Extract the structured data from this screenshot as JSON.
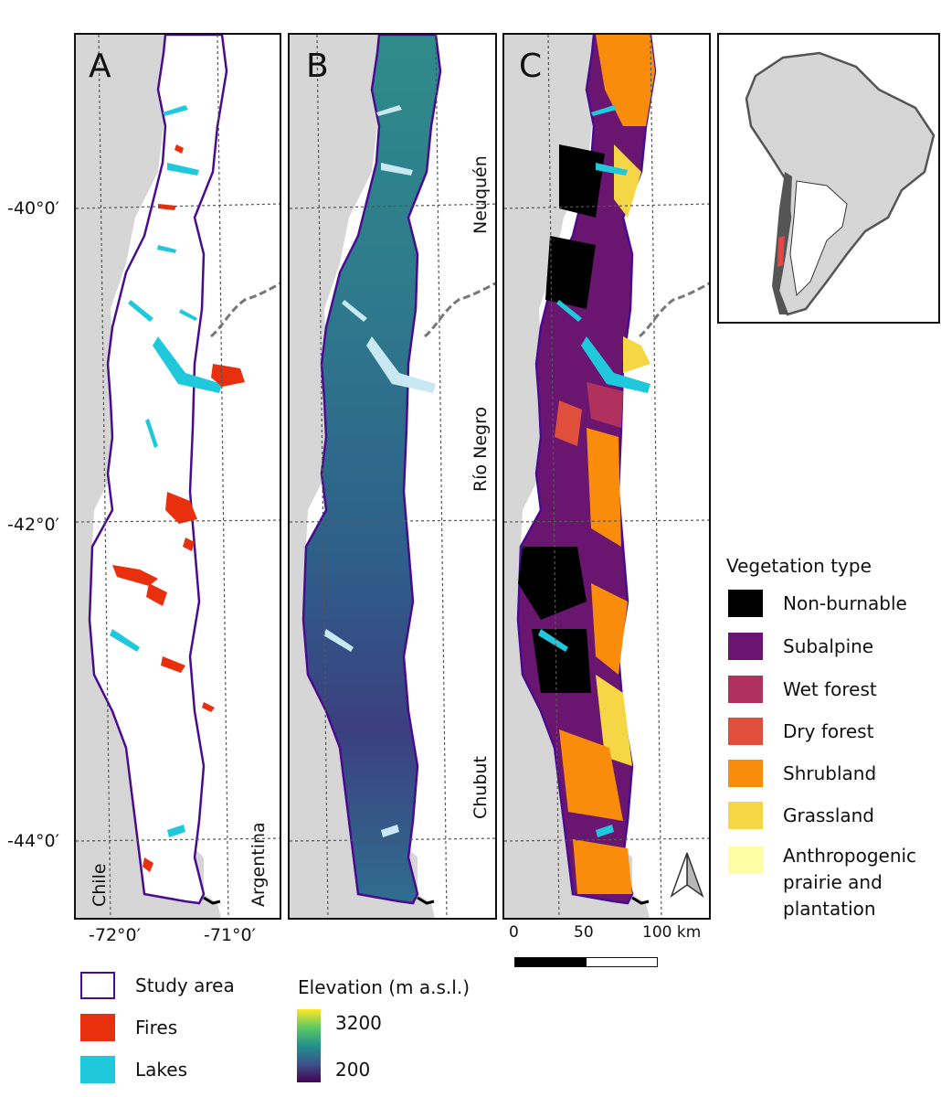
{
  "panels": [
    {
      "letter": "A"
    },
    {
      "letter": "B"
    },
    {
      "letter": "C"
    }
  ],
  "latitude_labels": [
    "-40°0′",
    "-42°0′",
    "-44°0′"
  ],
  "longitude_labels": [
    "-72°0′",
    "-71°0′"
  ],
  "country_labels": {
    "chile": "Chile",
    "argentina": "Argentina"
  },
  "province_labels": [
    "Neuquén",
    "Río Negro",
    "Chubut"
  ],
  "scale_bar": {
    "labels": [
      "0",
      "50",
      "100 km"
    ]
  },
  "legend_left": {
    "items": [
      {
        "label": "Study area",
        "color": "#4a0c8f",
        "style": "outline"
      },
      {
        "label": "Fires",
        "color": "#e8300e",
        "style": "fill"
      },
      {
        "label": "Lakes",
        "color": "#20c8dc",
        "style": "fill"
      }
    ]
  },
  "elevation_legend": {
    "title": "Elevation (m a.s.l.)",
    "max_label": "3200",
    "min_label": "200",
    "colors": [
      "#fde725",
      "#5ec962",
      "#21918c",
      "#3b528b",
      "#440154"
    ]
  },
  "vegetation_legend": {
    "title": "Vegetation type",
    "items": [
      {
        "label": "Non-burnable",
        "color": "#000000"
      },
      {
        "label": "Subalpine",
        "color": "#6a1670"
      },
      {
        "label": "Wet forest",
        "color": "#b0305e"
      },
      {
        "label": "Dry forest",
        "color": "#e04f3c"
      },
      {
        "label": "Shrubland",
        "color": "#f98c0a"
      },
      {
        "label": "Grassland",
        "color": "#f5d645"
      },
      {
        "label": "Anthropogenic prairie and plantation",
        "lines": [
          "Anthropogenic",
          "prairie and",
          "plantation"
        ],
        "color": "#fcffa4"
      }
    ]
  }
}
